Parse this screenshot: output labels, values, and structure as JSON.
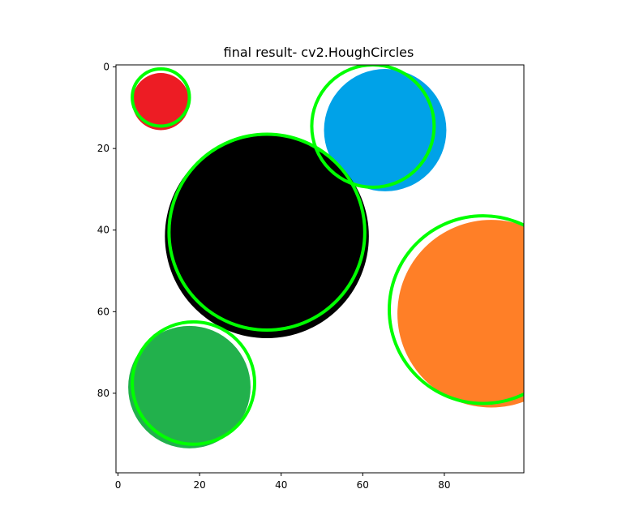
{
  "chart_data": {
    "type": "image",
    "title": "final result- cv2.HoughCircles",
    "xlabel": "",
    "ylabel": "",
    "xlim": [
      0,
      100
    ],
    "ylim": [
      100,
      0
    ],
    "grid": false,
    "x_ticks": [
      0,
      20,
      40,
      60,
      80
    ],
    "y_ticks": [
      0,
      20,
      40,
      60,
      80
    ],
    "background_color": "#ffffff",
    "detection_color": "#00ff00",
    "blobs": [
      {
        "name": "red-circle",
        "color": "#ed1c24",
        "cx": 11,
        "cy": 9,
        "r": 7
      },
      {
        "name": "blue-circle",
        "color": "#00a2e8",
        "cx": 66,
        "cy": 16,
        "r": 15
      },
      {
        "name": "black-circle",
        "color": "#000000",
        "cx": 37,
        "cy": 42,
        "r": 25
      },
      {
        "name": "orange-circle",
        "color": "#ff7f27",
        "cx": 92,
        "cy": 61,
        "r": 23
      },
      {
        "name": "green-circle",
        "color": "#22b14c",
        "cx": 18,
        "cy": 79,
        "r": 15
      }
    ],
    "detected_circles": [
      {
        "cx": 11,
        "cy": 8,
        "r": 7
      },
      {
        "cx": 63,
        "cy": 15,
        "r": 15
      },
      {
        "cx": 37,
        "cy": 41,
        "r": 24
      },
      {
        "cx": 90,
        "cy": 60,
        "r": 23
      },
      {
        "cx": 19,
        "cy": 78,
        "r": 15
      }
    ]
  }
}
